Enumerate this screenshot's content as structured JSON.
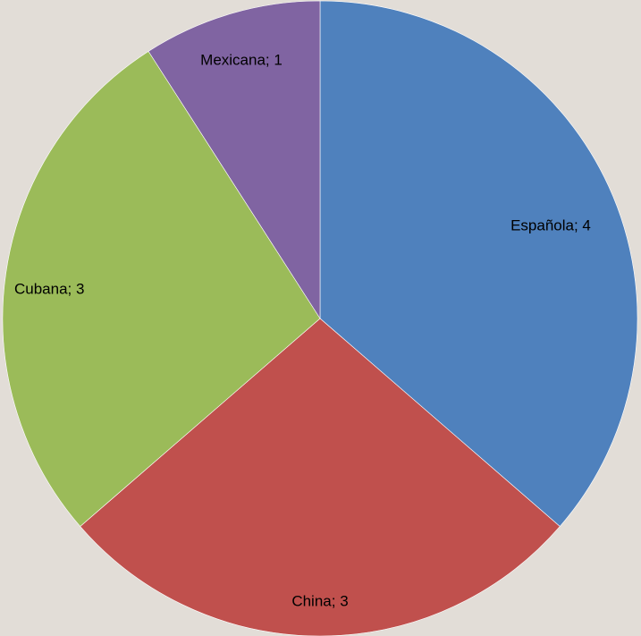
{
  "chart_data": {
    "type": "pie",
    "title": "",
    "labels": [
      "Española",
      "China",
      "Cubana",
      "Mexicana"
    ],
    "values": [
      4,
      3,
      3,
      1
    ],
    "data_labels": [
      "Española; 4",
      "China; 3",
      "Cubana; 3",
      "Mexicana; 1"
    ],
    "colors": [
      "#4f81bd",
      "#c0504d",
      "#9bbb59",
      "#8064a2"
    ],
    "start_angle": "12 o'clock",
    "direction": "clockwise",
    "legend": "none",
    "background": "#e2ddd7"
  }
}
